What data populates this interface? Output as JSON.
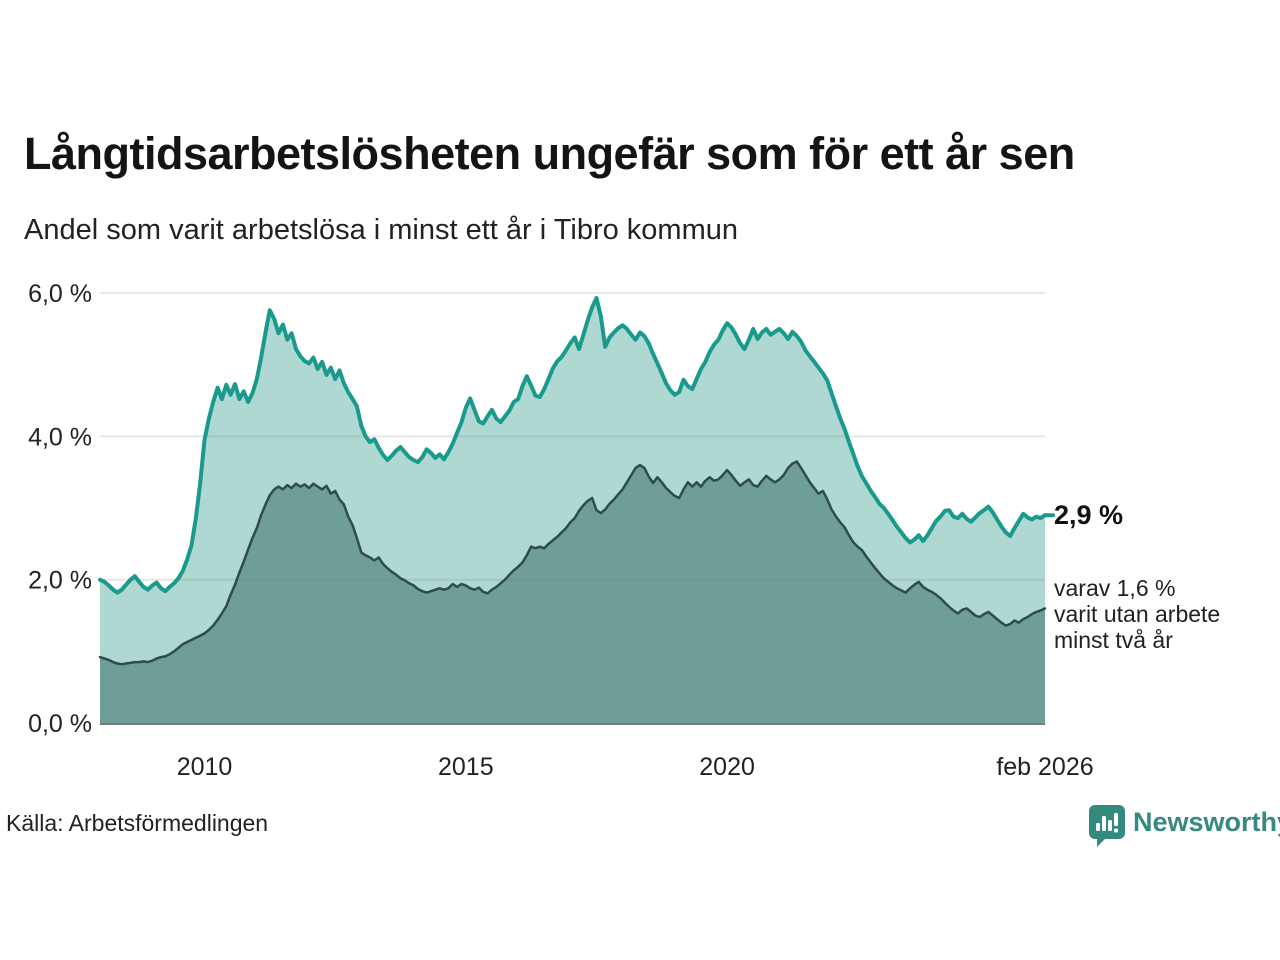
{
  "header": {
    "title": "Långtidsarbetslösheten ungefär som för ett år sen",
    "subtitle": "Andel som varit arbetslösa i minst ett år i Tibro kommun"
  },
  "annotations": {
    "end_value": "2,9 %",
    "note_lines": [
      "varav 1,6 %",
      "varit utan arbete",
      "minst två år"
    ]
  },
  "footer": {
    "source": "Källa: Arbetsförmedlingen",
    "brand": "Newsworthy"
  },
  "colors": {
    "line_one_year": "#1a9a8d",
    "fill_one_year": "#aed8d1",
    "line_two_years": "#2e4d48",
    "fill_two_years": "#6f9d98",
    "gridline": "#787878",
    "baseline": "#7a7a7a",
    "axis_text": "#222222",
    "brand_teal": "#35897f"
  },
  "chart_data": {
    "type": "area",
    "title": "Långtidsarbetslösheten ungefär som för ett år sen",
    "subtitle": "Andel som varit arbetslösa i minst ett år i Tibro kommun",
    "unit": "%",
    "frequency": "monthly",
    "x_start": "2008-01",
    "x_end": "2026-02",
    "ylim": [
      0,
      6.3
    ],
    "grid": true,
    "legend_position": "none",
    "yticks": [
      {
        "value": 0,
        "label": "0,0 %"
      },
      {
        "value": 2,
        "label": "2,0 %"
      },
      {
        "value": 4,
        "label": "4,0 %"
      },
      {
        "value": 6,
        "label": "6,0 %"
      }
    ],
    "xticks": [
      {
        "year": 2010.0,
        "label": "2010"
      },
      {
        "year": 2015.0,
        "label": "2015"
      },
      {
        "year": 2020.0,
        "label": "2020"
      },
      {
        "year": 2026.083,
        "label": "feb 2026"
      }
    ],
    "end_label_value": 2.9,
    "end_label_value_two_years": 1.6,
    "series": [
      {
        "name": "Andel arbetslösa minst ett år",
        "color": "#1a9a8d",
        "fill": "#aed8d1",
        "values": [
          2.0,
          1.97,
          1.92,
          1.86,
          1.82,
          1.86,
          1.93,
          2.0,
          2.05,
          1.97,
          1.9,
          1.86,
          1.92,
          1.96,
          1.88,
          1.84,
          1.9,
          1.95,
          2.02,
          2.12,
          2.28,
          2.48,
          2.85,
          3.35,
          3.95,
          4.25,
          4.48,
          4.68,
          4.52,
          4.72,
          4.58,
          4.73,
          4.52,
          4.63,
          4.48,
          4.6,
          4.8,
          5.1,
          5.45,
          5.76,
          5.64,
          5.44,
          5.56,
          5.35,
          5.44,
          5.22,
          5.12,
          5.05,
          5.02,
          5.1,
          4.94,
          5.04,
          4.86,
          4.96,
          4.8,
          4.92,
          4.74,
          4.62,
          4.52,
          4.42,
          4.15,
          4.0,
          3.92,
          3.96,
          3.84,
          3.74,
          3.67,
          3.73,
          3.8,
          3.85,
          3.78,
          3.71,
          3.67,
          3.64,
          3.71,
          3.82,
          3.77,
          3.7,
          3.75,
          3.68,
          3.78,
          3.9,
          4.05,
          4.2,
          4.4,
          4.53,
          4.37,
          4.21,
          4.18,
          4.28,
          4.37,
          4.25,
          4.2,
          4.28,
          4.36,
          4.48,
          4.52,
          4.7,
          4.84,
          4.71,
          4.57,
          4.55,
          4.66,
          4.8,
          4.95,
          5.05,
          5.11,
          5.2,
          5.3,
          5.38,
          5.22,
          5.42,
          5.62,
          5.8,
          5.93,
          5.68,
          5.25,
          5.38,
          5.45,
          5.51,
          5.55,
          5.5,
          5.42,
          5.35,
          5.45,
          5.4,
          5.3,
          5.15,
          5.02,
          4.88,
          4.74,
          4.64,
          4.58,
          4.62,
          4.79,
          4.7,
          4.66,
          4.8,
          4.94,
          5.04,
          5.18,
          5.28,
          5.35,
          5.48,
          5.58,
          5.52,
          5.42,
          5.3,
          5.22,
          5.35,
          5.5,
          5.36,
          5.45,
          5.5,
          5.42,
          5.46,
          5.5,
          5.44,
          5.36,
          5.46,
          5.4,
          5.32,
          5.2,
          5.12,
          5.04,
          4.96,
          4.88,
          4.78,
          4.6,
          4.42,
          4.25,
          4.1,
          3.92,
          3.75,
          3.58,
          3.44,
          3.34,
          3.24,
          3.15,
          3.06,
          3.0,
          2.92,
          2.83,
          2.74,
          2.66,
          2.58,
          2.52,
          2.56,
          2.62,
          2.54,
          2.62,
          2.72,
          2.82,
          2.88,
          2.96,
          2.97,
          2.88,
          2.86,
          2.92,
          2.85,
          2.81,
          2.87,
          2.93,
          2.97,
          3.02,
          2.94,
          2.84,
          2.74,
          2.66,
          2.61,
          2.72,
          2.82,
          2.92,
          2.87,
          2.84,
          2.88,
          2.86,
          2.9
        ]
      },
      {
        "name": "Andel utan arbete minst två år",
        "color": "#2e4d48",
        "fill": "#6f9d98",
        "values": [
          0.92,
          0.9,
          0.88,
          0.85,
          0.83,
          0.82,
          0.83,
          0.84,
          0.85,
          0.85,
          0.86,
          0.85,
          0.87,
          0.9,
          0.92,
          0.93,
          0.96,
          1.0,
          1.05,
          1.1,
          1.13,
          1.16,
          1.19,
          1.22,
          1.25,
          1.3,
          1.36,
          1.44,
          1.53,
          1.63,
          1.79,
          1.93,
          2.1,
          2.25,
          2.42,
          2.58,
          2.72,
          2.9,
          3.05,
          3.18,
          3.26,
          3.3,
          3.26,
          3.32,
          3.28,
          3.34,
          3.3,
          3.33,
          3.28,
          3.34,
          3.3,
          3.26,
          3.31,
          3.2,
          3.24,
          3.12,
          3.05,
          2.88,
          2.76,
          2.58,
          2.38,
          2.34,
          2.31,
          2.27,
          2.31,
          2.22,
          2.16,
          2.11,
          2.07,
          2.02,
          1.99,
          1.95,
          1.92,
          1.87,
          1.84,
          1.82,
          1.84,
          1.86,
          1.88,
          1.86,
          1.88,
          1.94,
          1.9,
          1.94,
          1.92,
          1.88,
          1.86,
          1.89,
          1.83,
          1.81,
          1.86,
          1.9,
          1.95,
          2.0,
          2.07,
          2.13,
          2.18,
          2.24,
          2.34,
          2.46,
          2.44,
          2.46,
          2.44,
          2.5,
          2.55,
          2.6,
          2.66,
          2.72,
          2.8,
          2.86,
          2.96,
          3.04,
          3.1,
          3.14,
          2.97,
          2.93,
          2.98,
          3.06,
          3.12,
          3.19,
          3.26,
          3.36,
          3.46,
          3.56,
          3.6,
          3.56,
          3.44,
          3.35,
          3.43,
          3.36,
          3.28,
          3.22,
          3.17,
          3.14,
          3.26,
          3.36,
          3.3,
          3.36,
          3.3,
          3.38,
          3.43,
          3.38,
          3.4,
          3.46,
          3.53,
          3.46,
          3.38,
          3.31,
          3.36,
          3.4,
          3.32,
          3.3,
          3.38,
          3.45,
          3.4,
          3.36,
          3.4,
          3.46,
          3.56,
          3.62,
          3.65,
          3.56,
          3.46,
          3.36,
          3.28,
          3.2,
          3.24,
          3.12,
          2.98,
          2.88,
          2.8,
          2.73,
          2.62,
          2.52,
          2.46,
          2.41,
          2.32,
          2.24,
          2.16,
          2.09,
          2.02,
          1.97,
          1.92,
          1.88,
          1.85,
          1.82,
          1.88,
          1.93,
          1.97,
          1.9,
          1.86,
          1.83,
          1.79,
          1.74,
          1.68,
          1.62,
          1.57,
          1.53,
          1.58,
          1.6,
          1.55,
          1.5,
          1.48,
          1.52,
          1.55,
          1.5,
          1.45,
          1.4,
          1.36,
          1.38,
          1.43,
          1.4,
          1.45,
          1.48,
          1.52,
          1.55,
          1.57,
          1.6
        ]
      }
    ]
  }
}
